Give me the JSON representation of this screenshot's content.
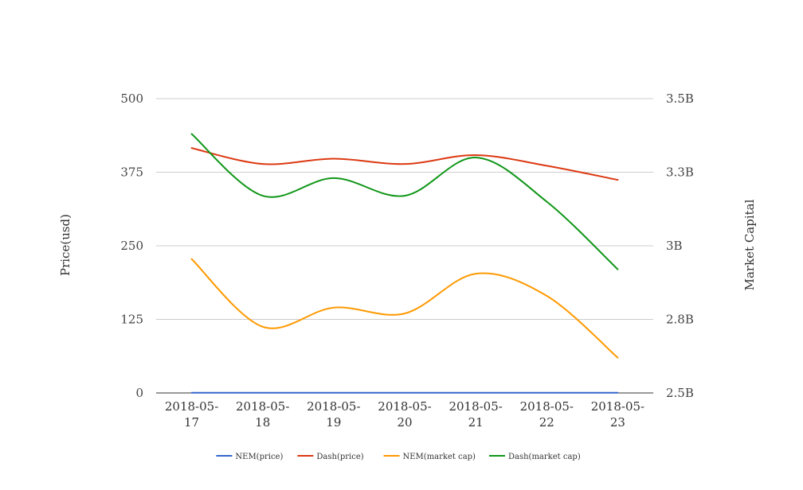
{
  "chart_data": {
    "type": "line",
    "title": "",
    "categories": [
      [
        "2018-05-",
        "17"
      ],
      [
        "2018-05-",
        "18"
      ],
      [
        "2018-05-",
        "19"
      ],
      [
        "2018-05-",
        "20"
      ],
      [
        "2018-05-",
        "21"
      ],
      [
        "2018-05-",
        "22"
      ],
      [
        "2018-05-",
        "23"
      ]
    ],
    "y_left": {
      "label": "Price(usd)",
      "range": [
        0,
        500
      ],
      "ticks": [
        0,
        125,
        250,
        375,
        500
      ],
      "tick_labels": [
        "0",
        "125",
        "250",
        "375",
        "500"
      ]
    },
    "y_right": {
      "label": "Market Capital",
      "range": [
        2.5,
        3.5
      ],
      "ticks": [
        2.5,
        2.75,
        3.0,
        3.25,
        3.5
      ],
      "tick_labels": [
        "2.5B",
        "2.8B",
        "3B",
        "3.3B",
        "3.5B"
      ]
    },
    "series": [
      {
        "name": "NEM(price)",
        "axis": "left",
        "color": "#3366cc",
        "values": [
          0.28,
          0.27,
          0.27,
          0.27,
          0.27,
          0.26,
          0.25
        ]
      },
      {
        "name": "Dash(price)",
        "axis": "left",
        "color": "#dc3912",
        "values": [
          416,
          389,
          398,
          389,
          404,
          386,
          362
        ]
      },
      {
        "name": "NEM(market cap)",
        "axis": "right",
        "color": "#ff9900",
        "values": [
          2.955,
          2.725,
          2.79,
          2.77,
          2.905,
          2.83,
          2.62
        ]
      },
      {
        "name": "Dash(market cap)",
        "axis": "right",
        "color": "#109618",
        "values": [
          3.38,
          3.17,
          3.23,
          3.17,
          3.3,
          3.15,
          2.92
        ]
      }
    ],
    "grid": true,
    "legend_position": "bottom"
  }
}
